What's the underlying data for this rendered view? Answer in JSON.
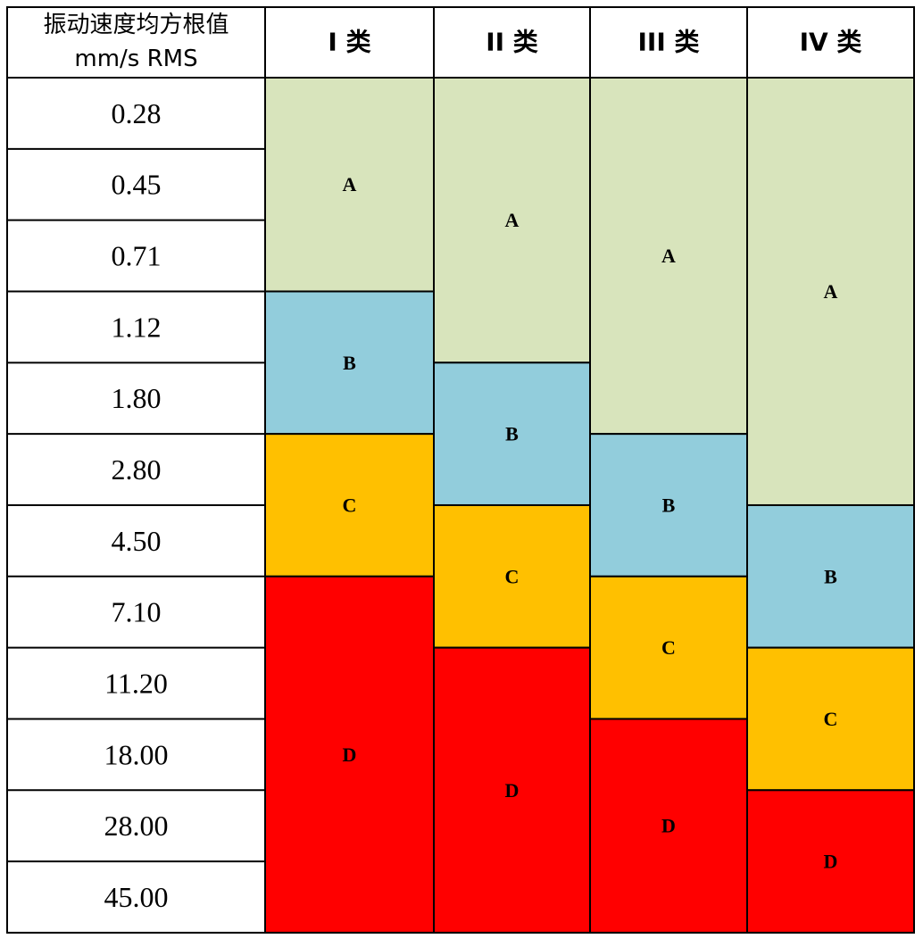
{
  "chart_data": {
    "type": "table",
    "row_header": [
      "振动速度均方根值",
      "mm/s RMS"
    ],
    "columns": [
      "I 类",
      "II 类",
      "III 类",
      "IV 类"
    ],
    "rows": [
      "0.28",
      "0.45",
      "0.71",
      "1.12",
      "1.80",
      "2.80",
      "4.50",
      "7.10",
      "11.20",
      "18.00",
      "28.00",
      "45.00"
    ],
    "zones": [
      [
        {
          "label": "A",
          "from": "0.28",
          "to": "0.71"
        },
        {
          "label": "B",
          "from": "1.12",
          "to": "1.80"
        },
        {
          "label": "C",
          "from": "2.80",
          "to": "4.50"
        },
        {
          "label": "D",
          "from": "7.10",
          "to": "45.00"
        }
      ],
      [
        {
          "label": "A",
          "from": "0.28",
          "to": "1.12"
        },
        {
          "label": "B",
          "from": "1.80",
          "to": "2.80"
        },
        {
          "label": "C",
          "from": "4.50",
          "to": "7.10"
        },
        {
          "label": "D",
          "from": "11.20",
          "to": "45.00"
        }
      ],
      [
        {
          "label": "A",
          "from": "0.28",
          "to": "1.80"
        },
        {
          "label": "B",
          "from": "2.80",
          "to": "4.50"
        },
        {
          "label": "C",
          "from": "7.10",
          "to": "11.20"
        },
        {
          "label": "D",
          "from": "18.00",
          "to": "45.00"
        }
      ],
      [
        {
          "label": "A",
          "from": "0.28",
          "to": "2.80"
        },
        {
          "label": "B",
          "from": "4.50",
          "to": "7.10"
        },
        {
          "label": "C",
          "from": "11.20",
          "to": "18.00"
        },
        {
          "label": "D",
          "from": "28.00",
          "to": "45.00"
        }
      ]
    ],
    "zone_colors": {
      "A": "#d8e4bc",
      "B": "#92cddc",
      "C": "#ffc000",
      "D": "#ff0000"
    }
  }
}
